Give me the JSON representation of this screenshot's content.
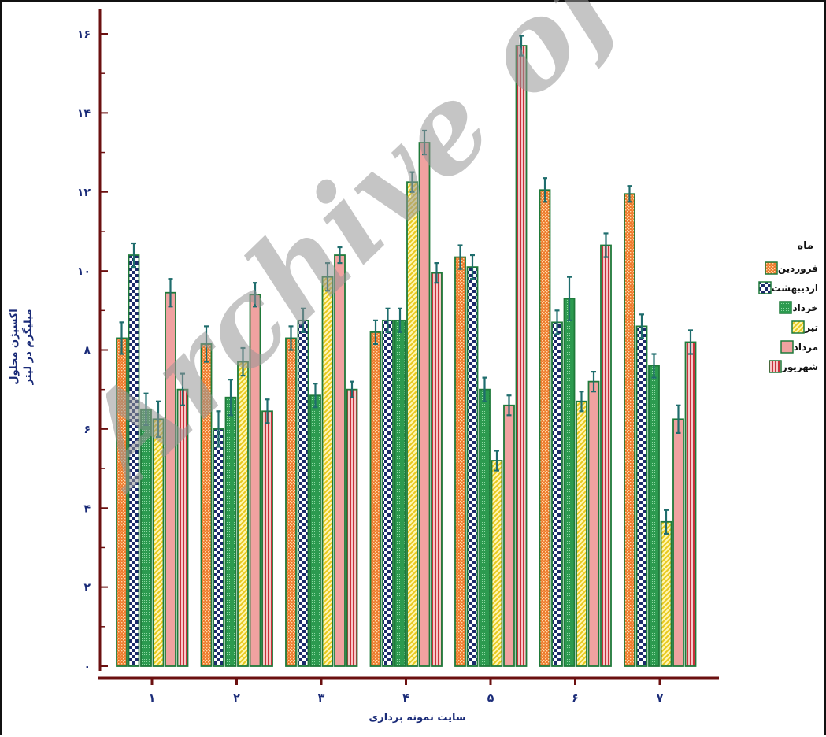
{
  "chart_data": {
    "type": "bar",
    "ylabel_line1": "اکسیژن محلول",
    "ylabel_line2": "میلیگرم در لیتر",
    "xlabel": "سایت نمونه برداری",
    "ylim": [
      0,
      16
    ],
    "yticks": [
      {
        "v": 0,
        "t": "۰"
      },
      {
        "v": 2,
        "t": "۲"
      },
      {
        "v": 4,
        "t": "۴"
      },
      {
        "v": 6,
        "t": "۶"
      },
      {
        "v": 8,
        "t": "۸"
      },
      {
        "v": 10,
        "t": "۱۰"
      },
      {
        "v": 12,
        "t": "۱۲"
      },
      {
        "v": 14,
        "t": "۱۴"
      },
      {
        "v": 16,
        "t": "۱۶"
      }
    ],
    "categories": [
      "۱",
      "۲",
      "۳",
      "۴",
      "۵",
      "۶",
      "۷"
    ],
    "legend_title": "ماه",
    "legend_position": "right",
    "series": [
      {
        "name": "فروردین",
        "pattern": "dots-orange",
        "values": [
          8.3,
          8.15,
          8.3,
          8.45,
          10.35,
          12.05,
          11.95
        ],
        "errors": [
          0.4,
          0.45,
          0.3,
          0.3,
          0.3,
          0.3,
          0.2
        ]
      },
      {
        "name": "اردیبهشت",
        "pattern": "checker-navy",
        "values": [
          10.4,
          6.0,
          8.75,
          8.75,
          10.1,
          8.7,
          8.6
        ],
        "errors": [
          0.3,
          0.45,
          0.3,
          0.3,
          0.3,
          0.3,
          0.3
        ]
      },
      {
        "name": "خرداد",
        "pattern": "grid-green",
        "values": [
          6.5,
          6.8,
          6.85,
          8.75,
          7.0,
          9.3,
          7.6
        ],
        "errors": [
          0.4,
          0.45,
          0.3,
          0.3,
          0.3,
          0.55,
          0.3
        ]
      },
      {
        "name": "تیر",
        "pattern": "diag-yellow",
        "values": [
          6.25,
          7.7,
          9.85,
          12.25,
          5.2,
          6.7,
          3.65
        ],
        "errors": [
          0.45,
          0.35,
          0.35,
          0.25,
          0.25,
          0.25,
          0.3
        ]
      },
      {
        "name": "مرداد",
        "pattern": "solid-pink",
        "values": [
          9.45,
          9.4,
          10.4,
          13.25,
          6.6,
          7.2,
          6.25
        ],
        "errors": [
          0.35,
          0.3,
          0.2,
          0.3,
          0.25,
          0.25,
          0.35
        ]
      },
      {
        "name": "شهریور",
        "pattern": "vstripe-red",
        "values": [
          7.0,
          6.45,
          7.0,
          9.95,
          15.7,
          10.65,
          8.2
        ],
        "errors": [
          0.4,
          0.3,
          0.2,
          0.25,
          0.25,
          0.3,
          0.3
        ]
      }
    ]
  },
  "watermark": "Archive of SID",
  "colors": {
    "axis": "#6b1010",
    "bar_border": "#1f7a3a",
    "error_bar": "#1f6d6d",
    "tick_label": "#1a2b78",
    "orange": "#ee7a2c",
    "navy": "#1c2a6b",
    "green": "#2c9a4f",
    "yellow": "#f2dd33",
    "pink": "#f0a2a0",
    "red": "#c8323a"
  }
}
